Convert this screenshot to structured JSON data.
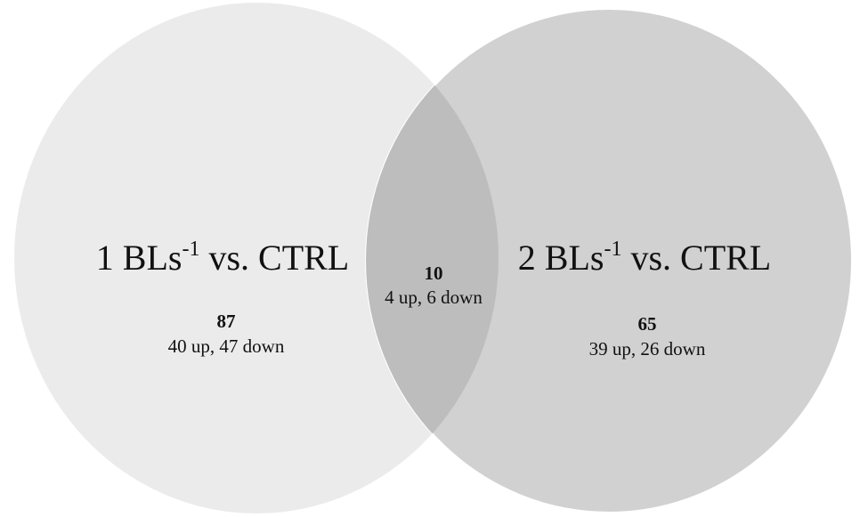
{
  "venn": {
    "left": {
      "title_prefix": "1 BLs",
      "title_sup": "-1",
      "title_suffix": " vs. CTRL",
      "count": "87",
      "breakdown": "40 up, 47 down",
      "fill": "#ebebeb"
    },
    "right": {
      "title_prefix": "2 BLs",
      "title_sup": "-1",
      "title_suffix": " vs. CTRL",
      "count": "65",
      "breakdown": "39 up, 26 down",
      "fill": "#d1d1d1"
    },
    "overlap": {
      "count": "10",
      "breakdown": "4 up, 6 down",
      "fill": "#bdbdbd"
    },
    "edge_color": "#ffffff"
  }
}
